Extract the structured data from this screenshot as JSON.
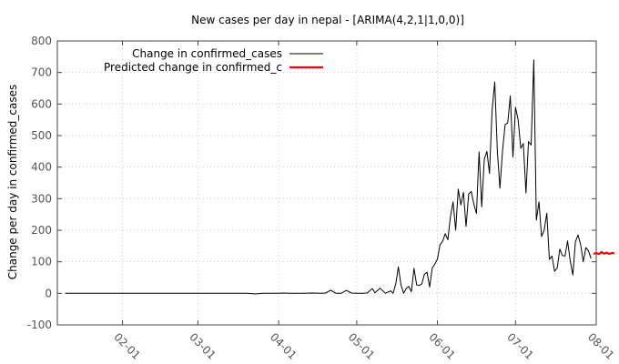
{
  "chart_data": {
    "type": "line",
    "title": "New cases per day in nepal -  [ARIMA(4,2,1|1,0,0)]",
    "xlabel": "",
    "ylabel": "Change per day in confirmed_cases",
    "ylim": [
      -100,
      800
    ],
    "yticks": [
      -100,
      0,
      100,
      200,
      300,
      400,
      500,
      600,
      700,
      800
    ],
    "xlim": [
      "2020-01-07",
      "2020-08-01"
    ],
    "xticks": [
      {
        "date": "2020-02-01",
        "label": "02-01"
      },
      {
        "date": "2020-03-01",
        "label": "03-01"
      },
      {
        "date": "2020-04-01",
        "label": "04-01"
      },
      {
        "date": "2020-05-01",
        "label": "05-01"
      },
      {
        "date": "2020-06-01",
        "label": "06-01"
      },
      {
        "date": "2020-07-01",
        "label": "07-01"
      },
      {
        "date": "2020-08-01",
        "label": "08-01"
      }
    ],
    "grid": true,
    "legend_position": "top-left",
    "series": [
      {
        "name": "Change in confirmed_cases",
        "color": "#000000",
        "points": [
          [
            "2020-01-10",
            0
          ],
          [
            "2020-02-15",
            0
          ],
          [
            "2020-03-10",
            0
          ],
          [
            "2020-03-20",
            0
          ],
          [
            "2020-03-23",
            -2
          ],
          [
            "2020-03-26",
            0
          ],
          [
            "2020-04-01",
            0
          ],
          [
            "2020-04-03",
            1
          ],
          [
            "2020-04-05",
            0
          ],
          [
            "2020-04-10",
            0
          ],
          [
            "2020-04-14",
            1
          ],
          [
            "2020-04-17",
            0
          ],
          [
            "2020-04-19",
            1
          ],
          [
            "2020-04-21",
            10
          ],
          [
            "2020-04-23",
            0
          ],
          [
            "2020-04-25",
            0
          ],
          [
            "2020-04-27",
            9
          ],
          [
            "2020-04-29",
            1
          ],
          [
            "2020-05-01",
            0
          ],
          [
            "2020-05-03",
            0
          ],
          [
            "2020-05-05",
            1
          ],
          [
            "2020-05-07",
            15
          ],
          [
            "2020-05-08",
            2
          ],
          [
            "2020-05-10",
            16
          ],
          [
            "2020-05-12",
            0
          ],
          [
            "2020-05-14",
            8
          ],
          [
            "2020-05-15",
            0
          ],
          [
            "2020-05-16",
            30
          ],
          [
            "2020-05-17",
            84
          ],
          [
            "2020-05-18",
            27
          ],
          [
            "2020-05-19",
            0
          ],
          [
            "2020-05-20",
            15
          ],
          [
            "2020-05-21",
            22
          ],
          [
            "2020-05-22",
            5
          ],
          [
            "2020-05-23",
            79
          ],
          [
            "2020-05-24",
            27
          ],
          [
            "2020-05-25",
            25
          ],
          [
            "2020-05-26",
            30
          ],
          [
            "2020-05-27",
            60
          ],
          [
            "2020-05-28",
            67
          ],
          [
            "2020-05-29",
            20
          ],
          [
            "2020-05-30",
            80
          ],
          [
            "2020-05-31",
            93
          ],
          [
            "2020-06-01",
            108
          ],
          [
            "2020-06-02",
            154
          ],
          [
            "2020-06-03",
            165
          ],
          [
            "2020-06-04",
            189
          ],
          [
            "2020-06-05",
            170
          ],
          [
            "2020-06-06",
            242
          ],
          [
            "2020-06-07",
            290
          ],
          [
            "2020-06-08",
            200
          ],
          [
            "2020-06-09",
            330
          ],
          [
            "2020-06-10",
            280
          ],
          [
            "2020-06-11",
            320
          ],
          [
            "2020-06-12",
            212
          ],
          [
            "2020-06-13",
            315
          ],
          [
            "2020-06-14",
            323
          ],
          [
            "2020-06-15",
            282
          ],
          [
            "2020-06-16",
            253
          ],
          [
            "2020-06-17",
            448
          ],
          [
            "2020-06-18",
            274
          ],
          [
            "2020-06-19",
            425
          ],
          [
            "2020-06-20",
            450
          ],
          [
            "2020-06-21",
            380
          ],
          [
            "2020-06-22",
            580
          ],
          [
            "2020-06-23",
            670
          ],
          [
            "2020-06-24",
            455
          ],
          [
            "2020-06-25",
            333
          ],
          [
            "2020-06-26",
            450
          ],
          [
            "2020-06-27",
            535
          ],
          [
            "2020-06-28",
            540
          ],
          [
            "2020-06-29",
            626
          ],
          [
            "2020-06-30",
            432
          ],
          [
            "2020-07-01",
            590
          ],
          [
            "2020-07-02",
            550
          ],
          [
            "2020-07-03",
            460
          ],
          [
            "2020-07-04",
            475
          ],
          [
            "2020-07-05",
            318
          ],
          [
            "2020-07-06",
            481
          ],
          [
            "2020-07-07",
            470
          ],
          [
            "2020-07-08",
            740
          ],
          [
            "2020-07-09",
            232
          ],
          [
            "2020-07-10",
            290
          ],
          [
            "2020-07-11",
            180
          ],
          [
            "2020-07-12",
            200
          ],
          [
            "2020-07-13",
            254
          ],
          [
            "2020-07-14",
            108
          ],
          [
            "2020-07-15",
            118
          ],
          [
            "2020-07-16",
            70
          ],
          [
            "2020-07-17",
            80
          ],
          [
            "2020-07-18",
            140
          ],
          [
            "2020-07-19",
            120
          ],
          [
            "2020-07-20",
            118
          ],
          [
            "2020-07-21",
            166
          ],
          [
            "2020-07-22",
            103
          ],
          [
            "2020-07-23",
            58
          ],
          [
            "2020-07-24",
            163
          ],
          [
            "2020-07-25",
            185
          ],
          [
            "2020-07-26",
            155
          ],
          [
            "2020-07-27",
            100
          ],
          [
            "2020-07-28",
            145
          ],
          [
            "2020-07-29",
            135
          ],
          [
            "2020-07-30",
            110
          ]
        ]
      },
      {
        "name": "Predicted change in confirmed_c",
        "color": "#ff0000",
        "points": [
          [
            "2020-07-31",
            125
          ],
          [
            "2020-08-01",
            128
          ],
          [
            "2020-08-02",
            124
          ],
          [
            "2020-08-03",
            131
          ],
          [
            "2020-08-04",
            126
          ],
          [
            "2020-08-05",
            129
          ],
          [
            "2020-08-06",
            125
          ],
          [
            "2020-08-07",
            128
          ],
          [
            "2020-08-08",
            127
          ]
        ]
      }
    ]
  }
}
